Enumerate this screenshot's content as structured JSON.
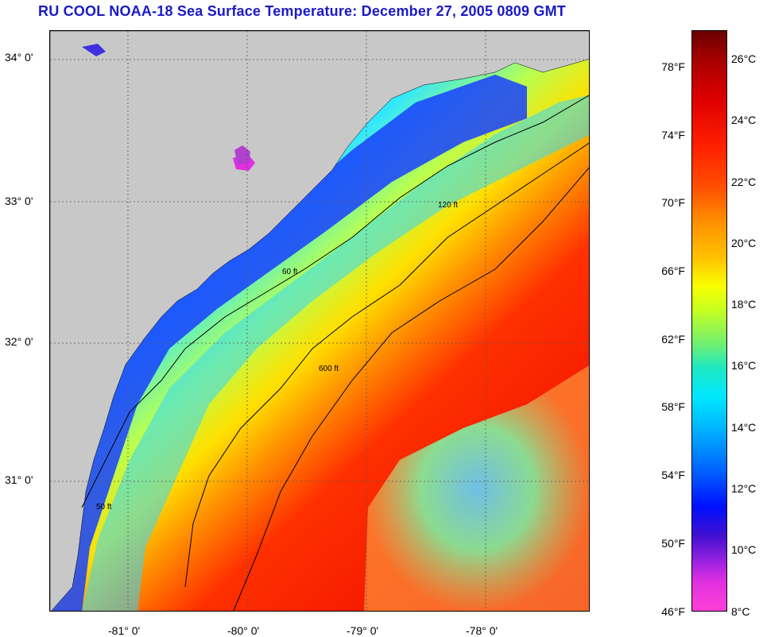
{
  "title": "RU COOL  NOAA-18  Sea Surface Temperature:  December 27, 2005 0809 GMT",
  "map": {
    "lat_labels": [
      "34° 0'",
      "33° 0'",
      "32° 0'",
      "31° 0'"
    ],
    "lon_labels": [
      "-81° 0'",
      "-80° 0'",
      "-79° 0'",
      "-78° 0'"
    ],
    "contour_labels": {
      "ft50": "50 ft",
      "ft60": "60 ft",
      "ft120": "120 ft",
      "ft600": "600 ft"
    },
    "colors": {
      "land": "#c8c8c8",
      "grid": "#555555",
      "contour": "#000000"
    }
  },
  "colorbar": {
    "fahrenheit": [
      "78°F",
      "74°F",
      "70°F",
      "66°F",
      "62°F",
      "58°F",
      "54°F",
      "50°F",
      "46°F"
    ],
    "celsius": [
      "26°C",
      "24°C",
      "22°C",
      "20°C",
      "18°C",
      "16°C",
      "14°C",
      "12°C",
      "10°C",
      "8°C"
    ]
  }
}
